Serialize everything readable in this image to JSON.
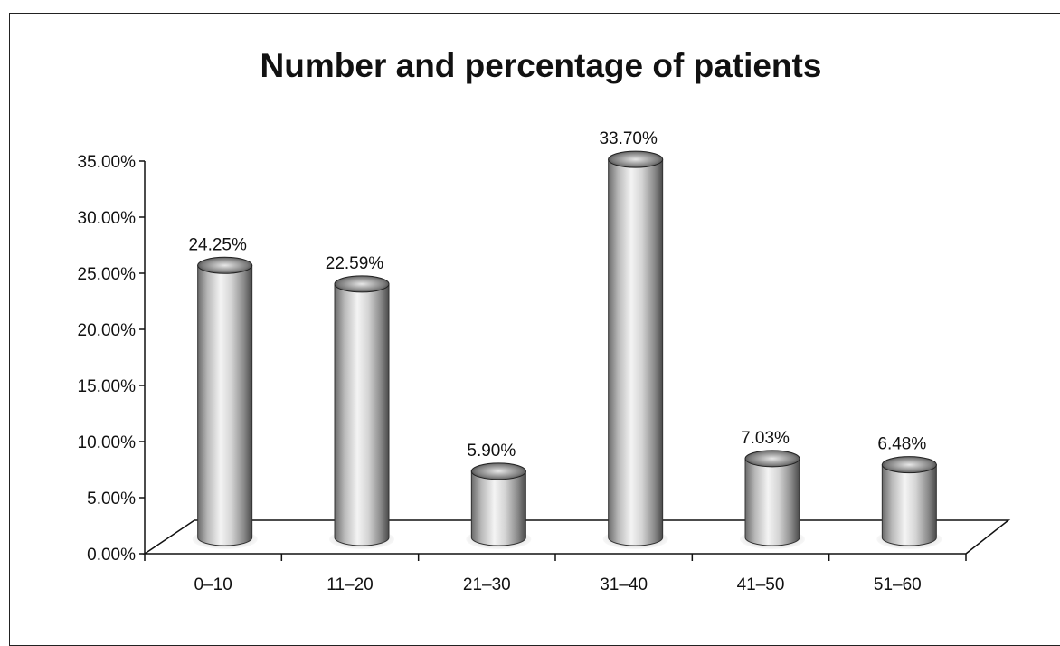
{
  "chart_data": {
    "type": "bar",
    "title": "Number and percentage of patients",
    "xlabel": "",
    "ylabel": "",
    "categories": [
      "0–10",
      "11–20",
      "21–30",
      "31–40",
      "41–50",
      "51–60"
    ],
    "values": [
      24.25,
      22.59,
      5.9,
      33.7,
      7.03,
      6.48
    ],
    "value_labels": [
      "24.25%",
      "22.59%",
      "5.90%",
      "33.70%",
      "7.03%",
      "6.48%"
    ],
    "ylim": [
      0,
      35
    ],
    "yticks": [
      0,
      5,
      10,
      15,
      20,
      25,
      30,
      35
    ],
    "ytick_labels": [
      "0.00%",
      "5.00%",
      "10.00%",
      "15.00%",
      "20.00%",
      "25.00%",
      "30.00%",
      "35.00%"
    ],
    "style": "3d-cylinder",
    "grid": false,
    "legend": "none"
  }
}
